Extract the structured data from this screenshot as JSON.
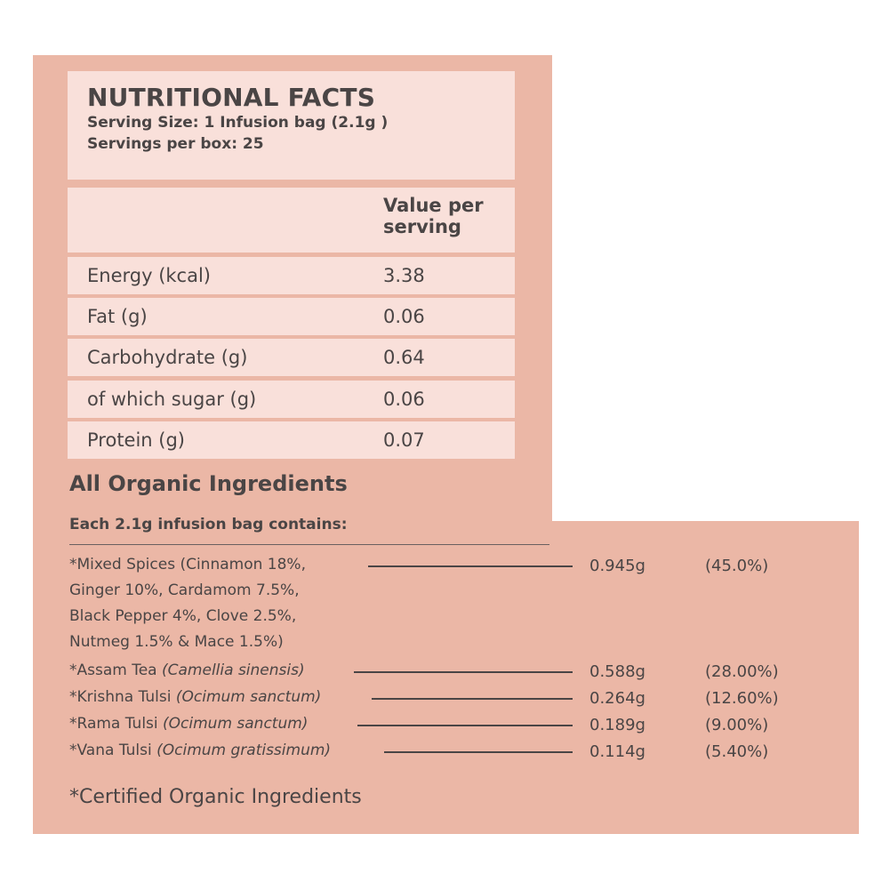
{
  "header": {
    "title": "NUTRITIONAL FACTS",
    "serving_size": "Serving Size: 1 Infusion bag (2.1g )",
    "servings_per_box": "Servings per box: 25"
  },
  "table": {
    "column_header": "Value per serving",
    "column_header_line1": "Value per",
    "column_header_line2": "serving",
    "rows": [
      {
        "name": "Energy (kcal)",
        "value": "3.38"
      },
      {
        "name": "Fat (g)",
        "value": "0.06"
      },
      {
        "name": "Carbohydrate (g)",
        "value": "0.64"
      },
      {
        "name": "of which sugar (g)",
        "value": "0.06"
      },
      {
        "name": "Protein (g)",
        "value": "0.07"
      }
    ]
  },
  "ingredients": {
    "title": "All Organic Ingredients",
    "subtitle": "Each 2.1g infusion bag contains:",
    "items": [
      {
        "lines": [
          "*Mixed Spices (Cinnamon 18%,",
          "Ginger 10%, Cardamom 7.5%,",
          "Black Pepper 4%, Clove 2.5%,",
          "Nutmeg 1.5% & Mace 1.5%)"
        ],
        "amount": "0.945g",
        "percent": "(45.0%)"
      },
      {
        "name": "*Assam Tea",
        "latin": "(Camellia sinensis)",
        "amount": "0.588g",
        "percent": "(28.00%)"
      },
      {
        "name": "*Krishna Tulsi",
        "latin": "(Ocimum sanctum)",
        "amount": "0.264g",
        "percent": "(12.60%)"
      },
      {
        "name": "*Rama Tulsi",
        "latin": "(Ocimum sanctum)",
        "amount": "0.189g",
        "percent": "(9.00%)"
      },
      {
        "name": "*Vana Tulsi",
        "latin": "(Ocimum gratissimum)",
        "amount": "0.114g",
        "percent": "(5.40%)"
      }
    ]
  },
  "footer": "*Certified Organic Ingredients",
  "colors": {
    "panel": "#ebb7a6",
    "cell": "#f9e0da",
    "text": "#4a4545"
  }
}
